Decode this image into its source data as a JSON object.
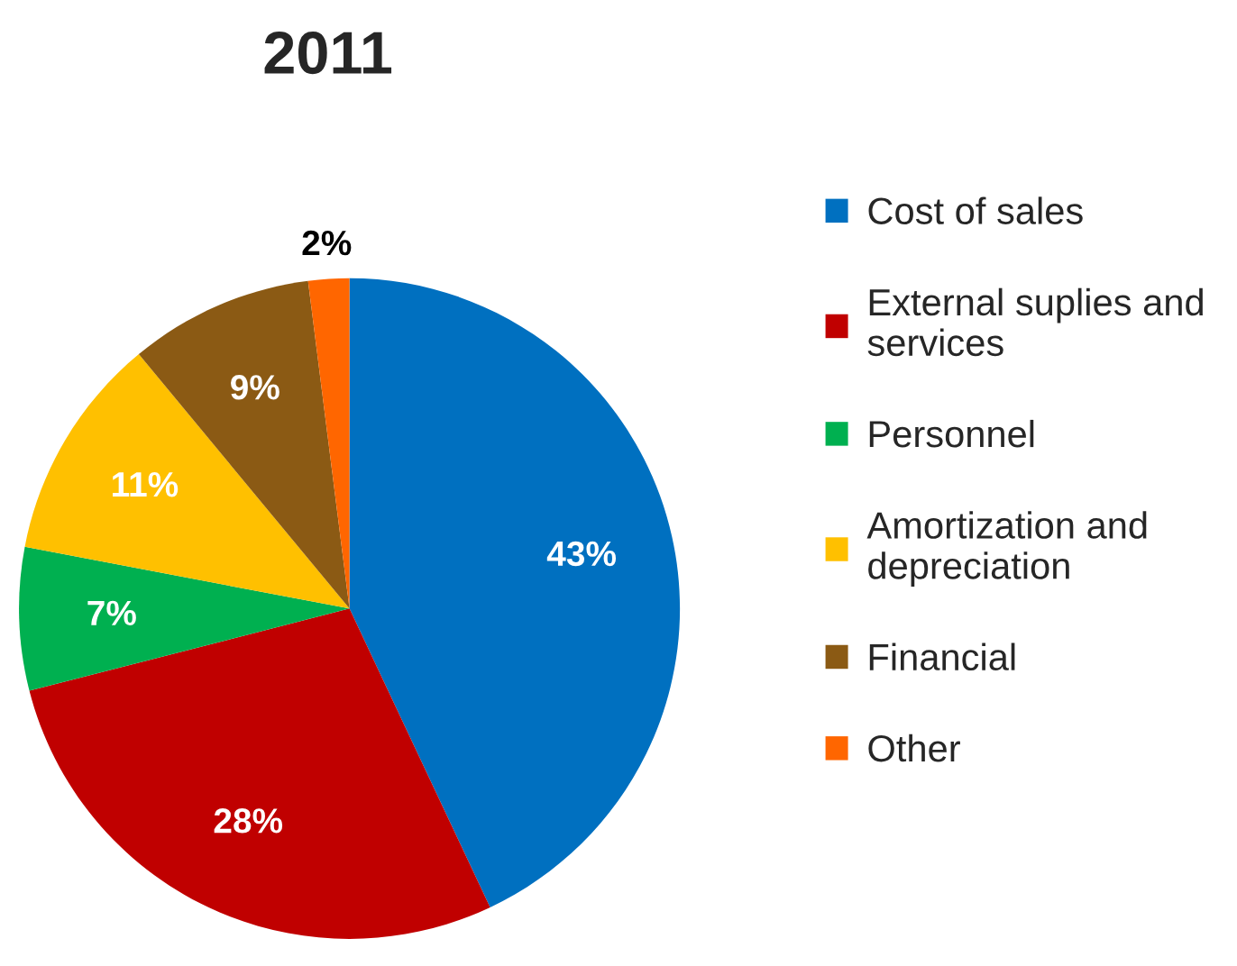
{
  "chart_data": {
    "type": "pie",
    "title": "2011",
    "categories": [
      "Cost of sales",
      "External suplies and\nservices",
      "Personnel",
      "Amortization and\ndepreciation",
      "Financial",
      "Other"
    ],
    "values": [
      43,
      28,
      7,
      11,
      9,
      2
    ],
    "colors": [
      "#0070c0",
      "#c00000",
      "#00b050",
      "#ffc000",
      "#8b5a14",
      "#ff6600"
    ],
    "value_labels": [
      "43%",
      "28%",
      "7%",
      "11%",
      "9%",
      "2%"
    ],
    "legend": "right"
  }
}
